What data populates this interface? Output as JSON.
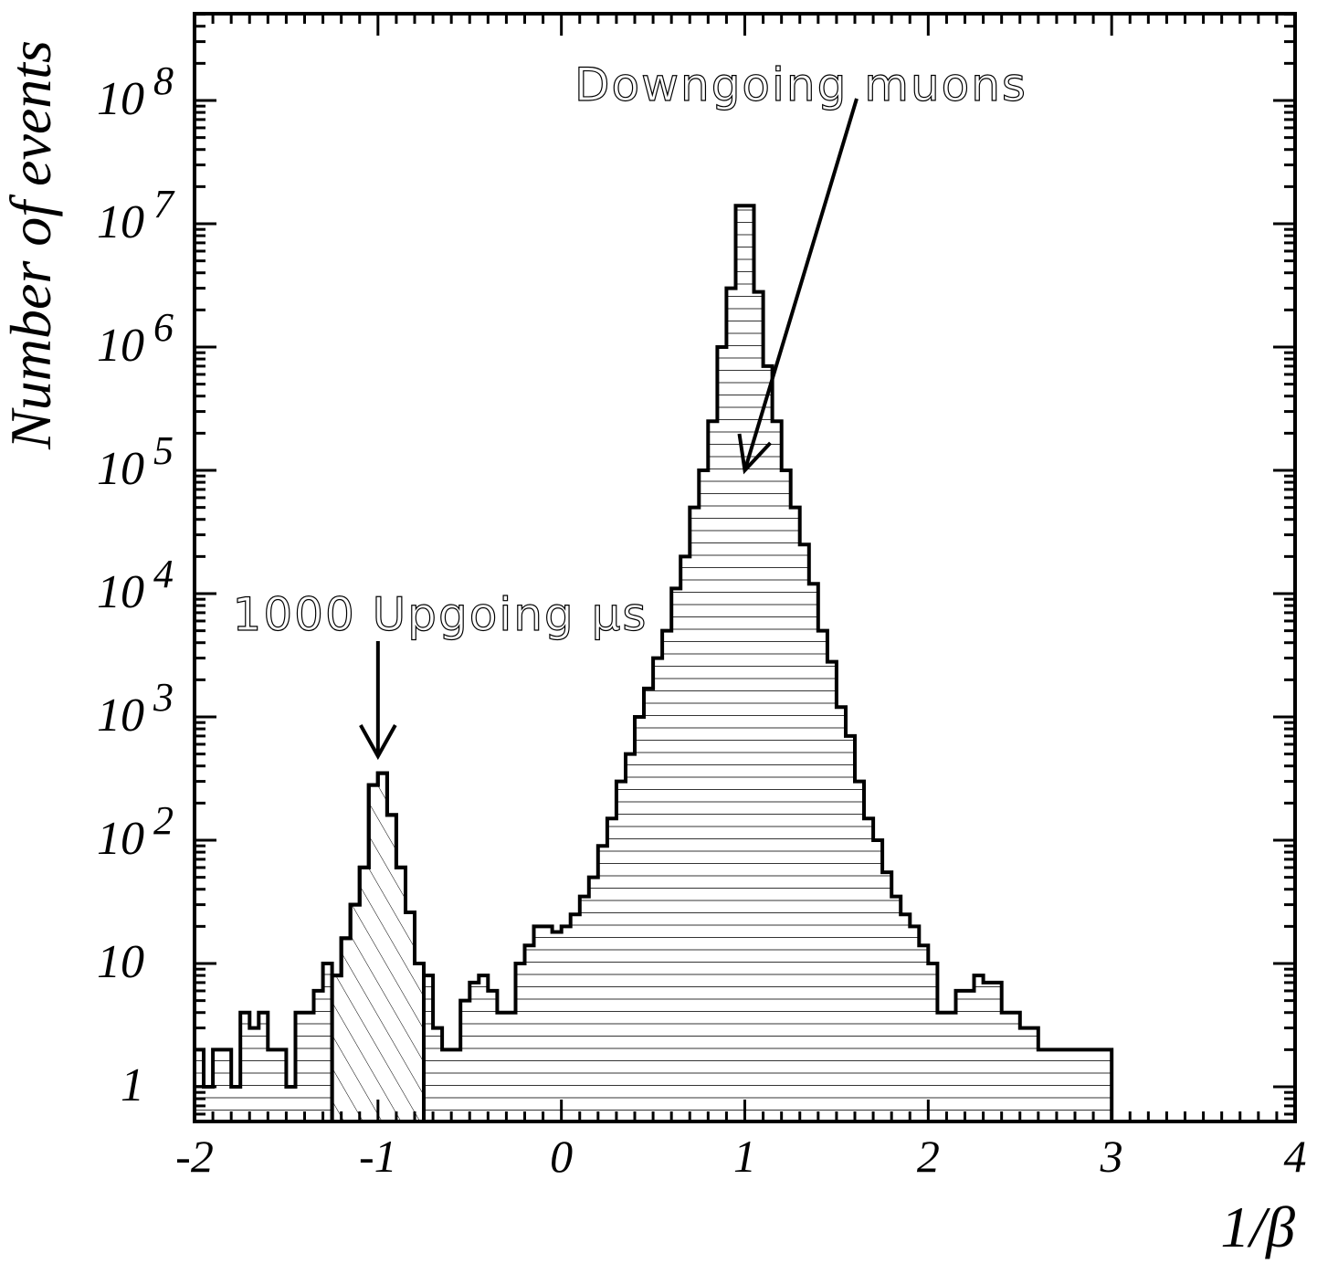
{
  "chart_data": {
    "type": "histogram",
    "xlabel": "1/β",
    "ylabel": "Number of events",
    "xlim": [
      -2,
      4
    ],
    "ylim": [
      0.5,
      500000000
    ],
    "y_scale": "log",
    "grid": false,
    "bin_width": 0.05,
    "x_ticks": [
      {
        "value": -2,
        "label": "-2"
      },
      {
        "value": -1,
        "label": "-1"
      },
      {
        "value": 0,
        "label": "0"
      },
      {
        "value": 1,
        "label": "1"
      },
      {
        "value": 2,
        "label": "2"
      },
      {
        "value": 3,
        "label": "3"
      },
      {
        "value": 4,
        "label": "4"
      }
    ],
    "y_ticks": [
      {
        "value": 1,
        "base": "1",
        "exp": ""
      },
      {
        "value": 10,
        "base": "10",
        "exp": ""
      },
      {
        "value": 100,
        "base": "10",
        "exp": "2"
      },
      {
        "value": 1000,
        "base": "10",
        "exp": "3"
      },
      {
        "value": 10000,
        "base": "10",
        "exp": "4"
      },
      {
        "value": 100000,
        "base": "10",
        "exp": "5"
      },
      {
        "value": 1000000,
        "base": "10",
        "exp": "6"
      },
      {
        "value": 10000000,
        "base": "10",
        "exp": "7"
      },
      {
        "value": 100000000,
        "base": "10",
        "exp": "8"
      }
    ],
    "series": [
      {
        "fill": "horizontal-lines",
        "bins": [
          [
            -2.0,
            2
          ],
          [
            -1.95,
            1
          ],
          [
            -1.9,
            2
          ],
          [
            -1.85,
            2
          ],
          [
            -1.8,
            1
          ],
          [
            -1.75,
            4
          ],
          [
            -1.7,
            3
          ],
          [
            -1.65,
            4
          ],
          [
            -1.6,
            2
          ],
          [
            -1.55,
            2
          ],
          [
            -1.5,
            1
          ],
          [
            -1.45,
            4
          ],
          [
            -1.4,
            4
          ],
          [
            -1.35,
            6
          ],
          [
            -1.3,
            10
          ],
          [
            -1.25,
            8
          ],
          [
            -1.2,
            16
          ],
          [
            -1.15,
            30
          ],
          [
            -1.1,
            60
          ],
          [
            -1.05,
            280
          ],
          [
            -1.0,
            350
          ],
          [
            -0.95,
            160
          ],
          [
            -0.9,
            60
          ],
          [
            -0.85,
            26
          ],
          [
            -0.8,
            10
          ],
          [
            -0.75,
            8
          ],
          [
            -0.7,
            3
          ],
          [
            -0.65,
            2
          ],
          [
            -0.6,
            2
          ],
          [
            -0.55,
            5
          ],
          [
            -0.5,
            7
          ],
          [
            -0.45,
            8
          ],
          [
            -0.4,
            6
          ],
          [
            -0.35,
            4
          ],
          [
            -0.3,
            4
          ],
          [
            -0.25,
            10
          ],
          [
            -0.2,
            14
          ],
          [
            -0.15,
            20
          ],
          [
            -0.1,
            20
          ],
          [
            -0.05,
            18
          ],
          [
            0.0,
            20
          ],
          [
            0.05,
            25
          ],
          [
            0.1,
            35
          ],
          [
            0.15,
            50
          ],
          [
            0.2,
            90
          ],
          [
            0.25,
            150
          ],
          [
            0.3,
            300
          ],
          [
            0.35,
            500
          ],
          [
            0.4,
            1000
          ],
          [
            0.45,
            1700
          ],
          [
            0.5,
            3000
          ],
          [
            0.55,
            5000
          ],
          [
            0.6,
            11000
          ],
          [
            0.65,
            20000
          ],
          [
            0.7,
            50000
          ],
          [
            0.75,
            100000
          ],
          [
            0.8,
            250000
          ],
          [
            0.85,
            1000000
          ],
          [
            0.9,
            3000000
          ],
          [
            0.95,
            14000000
          ],
          [
            1.0,
            14000000
          ],
          [
            1.05,
            2800000
          ],
          [
            1.1,
            700000
          ],
          [
            1.15,
            250000
          ],
          [
            1.2,
            100000
          ],
          [
            1.25,
            50000
          ],
          [
            1.3,
            25000
          ],
          [
            1.35,
            12000
          ],
          [
            1.4,
            5000
          ],
          [
            1.45,
            2800
          ],
          [
            1.5,
            1200
          ],
          [
            1.55,
            700
          ],
          [
            1.6,
            300
          ],
          [
            1.65,
            150
          ],
          [
            1.7,
            100
          ],
          [
            1.75,
            55
          ],
          [
            1.8,
            35
          ],
          [
            1.85,
            25
          ],
          [
            1.9,
            20
          ],
          [
            1.95,
            14
          ],
          [
            2.0,
            10
          ],
          [
            2.05,
            4
          ],
          [
            2.1,
            4
          ],
          [
            2.15,
            6
          ],
          [
            2.2,
            6
          ],
          [
            2.25,
            8
          ],
          [
            2.3,
            7
          ],
          [
            2.35,
            7
          ],
          [
            2.4,
            4
          ],
          [
            2.45,
            4
          ],
          [
            2.5,
            3
          ],
          [
            2.55,
            3
          ],
          [
            2.6,
            2
          ],
          [
            2.65,
            2
          ],
          [
            2.7,
            2
          ],
          [
            2.75,
            2
          ],
          [
            2.8,
            2
          ],
          [
            2.85,
            2
          ],
          [
            2.9,
            2
          ],
          [
            2.95,
            2
          ]
        ]
      },
      {
        "fill": "diagonal-hatch",
        "bins": [
          [
            -1.25,
            8
          ],
          [
            -1.2,
            16
          ],
          [
            -1.15,
            30
          ],
          [
            -1.1,
            60
          ],
          [
            -1.05,
            280
          ],
          [
            -1.0,
            350
          ],
          [
            -0.95,
            160
          ],
          [
            -0.9,
            60
          ],
          [
            -0.85,
            26
          ],
          [
            -0.8,
            10
          ]
        ]
      }
    ],
    "annotations": [
      {
        "text": "Downgoing muons",
        "target_x": 1.0,
        "target_y": 100000
      },
      {
        "text": "1000 Upgoing μs",
        "target_x": -1.0,
        "target_y": 200
      }
    ]
  }
}
